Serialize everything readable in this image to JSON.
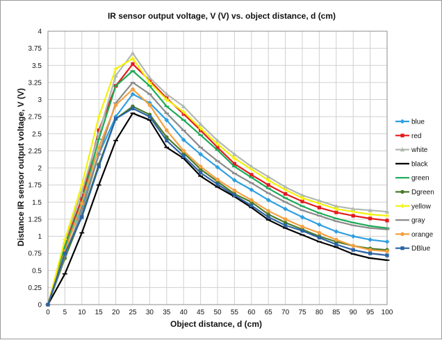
{
  "chart_data": {
    "type": "line",
    "title": "IR sensor output voltage, V (V) vs. object distance, d (cm)",
    "xlabel": "Object distance, d (cm)",
    "ylabel": "Distance IR sensor output voltage, V (V)",
    "x": [
      0,
      5,
      10,
      15,
      20,
      25,
      30,
      35,
      40,
      45,
      50,
      55,
      60,
      65,
      70,
      75,
      80,
      85,
      90,
      95,
      100
    ],
    "xlim": [
      0,
      100
    ],
    "ylim": [
      0,
      4
    ],
    "xticks": [
      "0",
      "5",
      "10",
      "15",
      "20",
      "25",
      "30",
      "35",
      "40",
      "45",
      "50",
      "55",
      "60",
      "65",
      "70",
      "75",
      "80",
      "85",
      "90",
      "95",
      "100"
    ],
    "yticks": [
      "0",
      "0.25",
      "0.5",
      "0.75",
      "1",
      "1.25",
      "1.5",
      "1.75",
      "2",
      "2.25",
      "2.5",
      "2.75",
      "3",
      "3.25",
      "3.5",
      "3.75",
      "4"
    ],
    "grid": true,
    "legend_position": "right",
    "series": [
      {
        "name": "blue",
        "color": "#2e9fe0",
        "marker": "diamond",
        "values": [
          0,
          0.82,
          1.42,
          2.2,
          2.75,
          3.08,
          2.95,
          2.7,
          2.41,
          2.2,
          2.01,
          1.82,
          1.68,
          1.53,
          1.4,
          1.28,
          1.17,
          1.07,
          1.0,
          0.95,
          0.92
        ]
      },
      {
        "name": "red",
        "color": "#e41a1c",
        "marker": "square",
        "values": [
          0,
          0.88,
          1.55,
          2.55,
          3.2,
          3.52,
          3.28,
          3.02,
          2.79,
          2.55,
          2.3,
          2.06,
          1.9,
          1.75,
          1.62,
          1.51,
          1.42,
          1.35,
          1.3,
          1.26,
          1.23
        ]
      },
      {
        "name": "white",
        "color": "#b0b8b0",
        "marker": "triangle",
        "values": [
          0,
          0.92,
          1.65,
          2.5,
          3.35,
          3.68,
          3.32,
          3.08,
          2.9,
          2.64,
          2.4,
          2.2,
          2.02,
          1.87,
          1.72,
          1.6,
          1.52,
          1.44,
          1.4,
          1.38,
          1.36
        ]
      },
      {
        "name": "black",
        "color": "#000000",
        "marker": "dash",
        "values": [
          0,
          0.45,
          1.05,
          1.75,
          2.4,
          2.8,
          2.7,
          2.3,
          2.14,
          1.88,
          1.72,
          1.58,
          1.42,
          1.24,
          1.12,
          1.02,
          0.92,
          0.84,
          0.74,
          0.68,
          0.65
        ]
      },
      {
        "name": "green",
        "color": "#1aaa55",
        "marker": "dash",
        "values": [
          0,
          0.85,
          1.5,
          2.42,
          3.2,
          3.42,
          3.2,
          2.9,
          2.7,
          2.48,
          2.26,
          2.02,
          1.86,
          1.7,
          1.56,
          1.44,
          1.34,
          1.26,
          1.2,
          1.15,
          1.12
        ]
      },
      {
        "name": "Dgreen",
        "color": "#4a7a2a",
        "marker": "circle",
        "values": [
          0,
          0.68,
          1.3,
          2.05,
          2.72,
          2.9,
          2.78,
          2.45,
          2.22,
          1.98,
          1.8,
          1.62,
          1.5,
          1.32,
          1.2,
          1.1,
          1.0,
          0.92,
          0.86,
          0.82,
          0.8
        ]
      },
      {
        "name": "yellow",
        "color": "#f2f20a",
        "marker": "plus",
        "values": [
          0,
          0.95,
          1.75,
          2.75,
          3.45,
          3.6,
          3.25,
          3.0,
          2.82,
          2.58,
          2.35,
          2.14,
          1.98,
          1.82,
          1.68,
          1.56,
          1.48,
          1.4,
          1.36,
          1.32,
          1.3
        ]
      },
      {
        "name": "gray",
        "color": "#8a8a8a",
        "marker": "dash",
        "values": [
          0,
          0.72,
          1.36,
          2.2,
          2.95,
          3.25,
          3.08,
          2.8,
          2.55,
          2.3,
          2.1,
          1.92,
          1.78,
          1.63,
          1.5,
          1.38,
          1.3,
          1.22,
          1.16,
          1.12,
          1.1
        ]
      },
      {
        "name": "orange",
        "color": "#f4a040",
        "marker": "circle",
        "values": [
          0,
          0.78,
          1.48,
          2.3,
          2.92,
          3.15,
          2.92,
          2.55,
          2.25,
          2.02,
          1.83,
          1.67,
          1.53,
          1.37,
          1.25,
          1.14,
          1.05,
          0.95,
          0.86,
          0.8,
          0.78
        ]
      },
      {
        "name": "DBlue",
        "color": "#2b63a3",
        "marker": "square",
        "values": [
          0,
          0.75,
          1.28,
          2.02,
          2.72,
          2.87,
          2.75,
          2.4,
          2.17,
          1.93,
          1.76,
          1.6,
          1.45,
          1.28,
          1.16,
          1.08,
          0.98,
          0.88,
          0.8,
          0.75,
          0.72
        ]
      }
    ]
  }
}
